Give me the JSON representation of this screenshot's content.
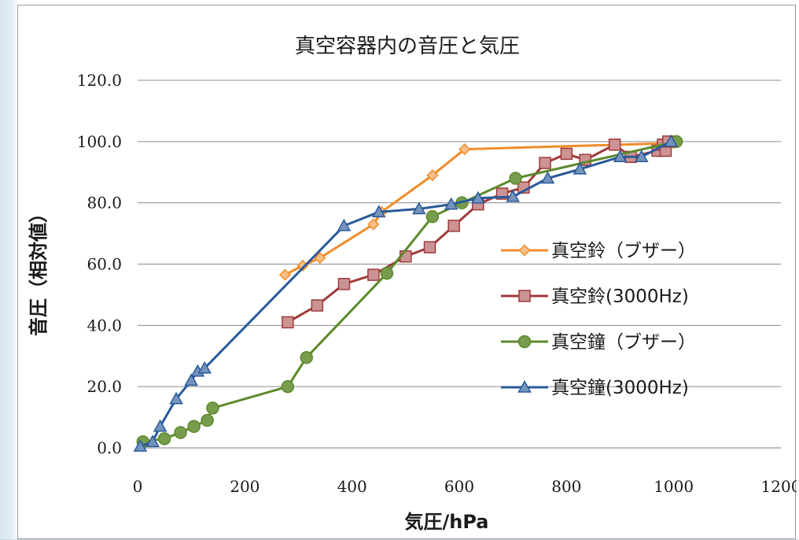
{
  "chart_data": {
    "type": "line",
    "title": "真空容器内の音圧と気圧",
    "xlabel": "気圧/hPa",
    "ylabel": "音圧（相対値）",
    "xlim": [
      0,
      1200
    ],
    "ylim": [
      0,
      120
    ],
    "x_ticks": [
      "0",
      "200",
      "400",
      "600",
      "800",
      "1000",
      "1200"
    ],
    "y_ticks": [
      "0.0",
      "20.0",
      "40.0",
      "60.0",
      "80.0",
      "100.0",
      "120.0"
    ],
    "grid": "horizontal",
    "legend_position": "right",
    "series": [
      {
        "name": "真空鈴（ブザー）",
        "color": "#f08c2a",
        "marker": "diamond",
        "points": [
          [
            275,
            56.5
          ],
          [
            308,
            59.5
          ],
          [
            340,
            62
          ],
          [
            440,
            73
          ],
          [
            455,
            77
          ],
          [
            550,
            89
          ],
          [
            610,
            97.5
          ],
          [
            1000,
            99.5
          ]
        ]
      },
      {
        "name": "真空鈴(3000Hz)",
        "color": "#a03a3a",
        "marker": "square",
        "points": [
          [
            280,
            41
          ],
          [
            335,
            46.5
          ],
          [
            385,
            53.5
          ],
          [
            440,
            56.5
          ],
          [
            500,
            62.5
          ],
          [
            545,
            65.5
          ],
          [
            590,
            72.5
          ],
          [
            635,
            79.5
          ],
          [
            680,
            83
          ],
          [
            720,
            85
          ],
          [
            760,
            93
          ],
          [
            800,
            96
          ],
          [
            835,
            94
          ],
          [
            890,
            99
          ],
          [
            920,
            95
          ],
          [
            970,
            97
          ],
          [
            980,
            99
          ],
          [
            985,
            97
          ],
          [
            990,
            100
          ]
        ]
      },
      {
        "name": "真空鐘（ブザー）",
        "color": "#5e8a2c",
        "marker": "circle",
        "points": [
          [
            10,
            2
          ],
          [
            50,
            3
          ],
          [
            80,
            5
          ],
          [
            105,
            7
          ],
          [
            130,
            9
          ],
          [
            140,
            13
          ],
          [
            280,
            20
          ],
          [
            315,
            29.5
          ],
          [
            465,
            57
          ],
          [
            550,
            75.5
          ],
          [
            605,
            80
          ],
          [
            705,
            88
          ],
          [
            1005,
            100
          ]
        ]
      },
      {
        "name": "真空鐘(3000Hz)",
        "color": "#2a5a99",
        "marker": "triangle",
        "points": [
          [
            5,
            0.5
          ],
          [
            28,
            2
          ],
          [
            42,
            7
          ],
          [
            72,
            16
          ],
          [
            100,
            22
          ],
          [
            112,
            25
          ],
          [
            125,
            26
          ],
          [
            385,
            72.5
          ],
          [
            450,
            77
          ],
          [
            525,
            78
          ],
          [
            585,
            79.5
          ],
          [
            635,
            81.5
          ],
          [
            700,
            82
          ],
          [
            765,
            88
          ],
          [
            825,
            91
          ],
          [
            900,
            95
          ],
          [
            940,
            95
          ],
          [
            995,
            100
          ]
        ]
      }
    ]
  }
}
